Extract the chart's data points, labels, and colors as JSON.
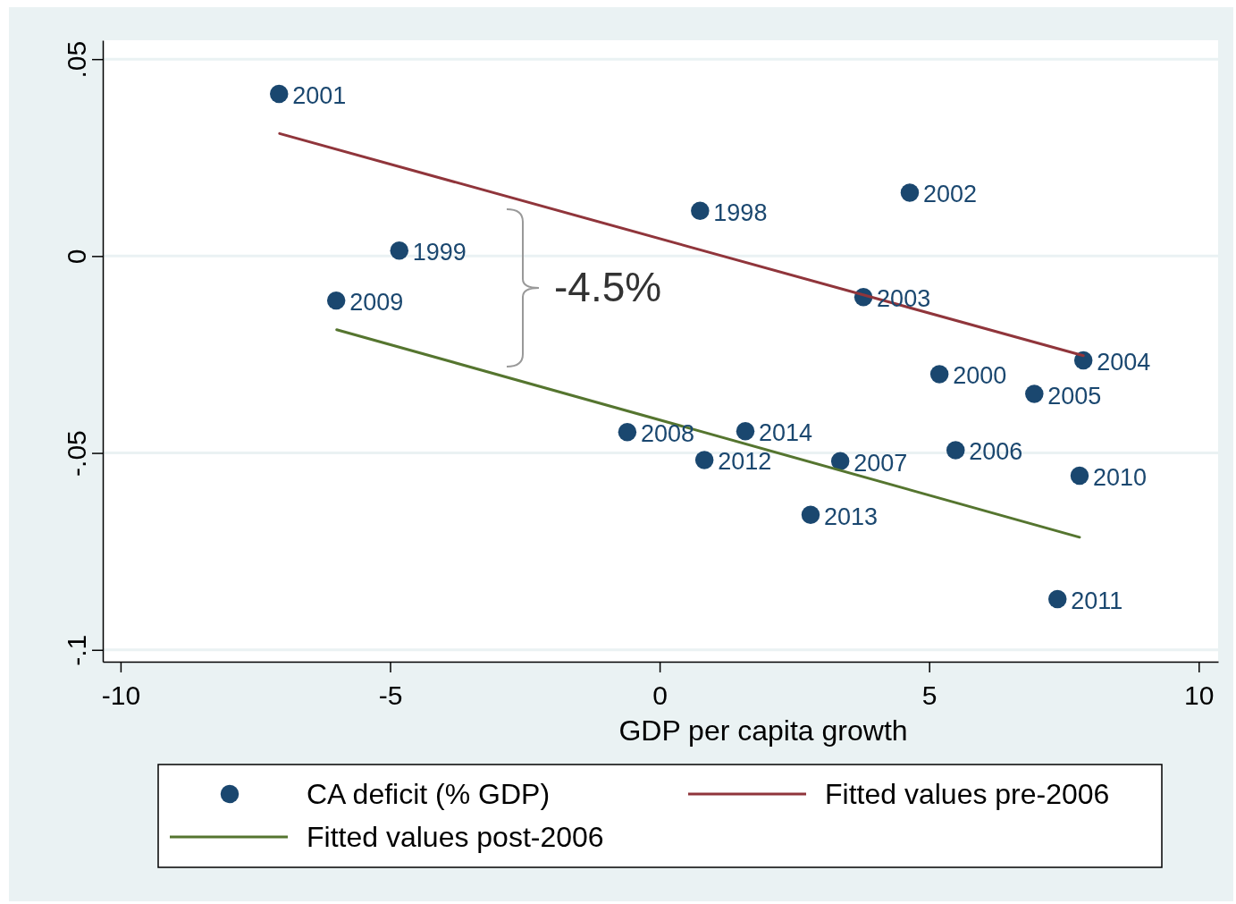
{
  "chart_data": {
    "type": "scatter",
    "xlabel": "GDP per capita growth",
    "x": [
      -7.06,
      0.75,
      4.64,
      -4.83,
      -6.0,
      3.78,
      7.86,
      5.19,
      6.95,
      -0.6,
      1.59,
      5.49,
      0.83,
      3.35,
      7.79,
      2.8,
      7.38
    ],
    "series": [
      {
        "name": "CA deficit (% GDP)",
        "color": "#1a476f",
        "marker": "circle",
        "values": [
          0.0412,
          0.0115,
          0.0161,
          0.0014,
          -0.0113,
          -0.0104,
          -0.0265,
          -0.03,
          -0.035,
          -0.0447,
          -0.0445,
          -0.0493,
          -0.0518,
          -0.0521,
          -0.0558,
          -0.0657,
          -0.0871
        ]
      },
      {
        "name": "Fitted values pre-2006",
        "type": "line",
        "color": "#90353b",
        "x": [
          -7.05,
          7.86
        ],
        "values": [
          0.0311,
          -0.0253
        ]
      },
      {
        "name": "Fitted values post-2006",
        "type": "line",
        "color": "#55752f",
        "x": [
          -5.99,
          7.79
        ],
        "values": [
          -0.0187,
          -0.0714
        ]
      }
    ],
    "xlim": [
      -10.33,
      10.36
    ],
    "xticks": [
      -10,
      -5,
      0,
      5,
      10
    ],
    "ylim": [
      -0.103,
      0.0548
    ],
    "yticks": [
      {
        "value": 0.05,
        "label": ".05"
      },
      0,
      {
        "value": -0.05,
        "label": "-.05"
      },
      {
        "value": -0.1,
        "label": "-.1"
      }
    ],
    "grid": "y",
    "legend": "bottom",
    "annotations": [
      "-4.5%",
      {
        "text": "2001",
        "x": -7.06,
        "y": 0.0412
      },
      {
        "text": "1998",
        "x": 0.75,
        "y": 0.0115
      },
      {
        "text": "2002",
        "x": 4.64,
        "y": 0.0161
      },
      {
        "text": "1999",
        "x": -4.83,
        "y": 0.0014
      },
      {
        "text": "2009",
        "x": -6.0,
        "y": -0.0113
      },
      {
        "text": "2003",
        "x": 3.78,
        "y": -0.0104
      },
      {
        "text": "2004",
        "x": 7.86,
        "y": -0.0265
      },
      {
        "text": "2000",
        "x": 5.19,
        "y": -0.03
      },
      {
        "text": "2005",
        "x": 6.95,
        "y": -0.035
      },
      {
        "text": "2008",
        "x": -0.6,
        "y": -0.0447
      },
      {
        "text": "2014",
        "x": 1.59,
        "y": -0.0445
      },
      {
        "text": "2006",
        "x": 5.49,
        "y": -0.0493
      },
      {
        "text": "2012",
        "x": 0.83,
        "y": -0.0518
      },
      {
        "text": "2007",
        "x": 3.35,
        "y": -0.0521
      },
      {
        "text": "2010",
        "x": 7.79,
        "y": -0.0558
      },
      {
        "text": "2013",
        "x": 2.8,
        "y": -0.0657
      },
      {
        "text": "2011",
        "x": 7.38,
        "y": -0.0871
      }
    ]
  }
}
